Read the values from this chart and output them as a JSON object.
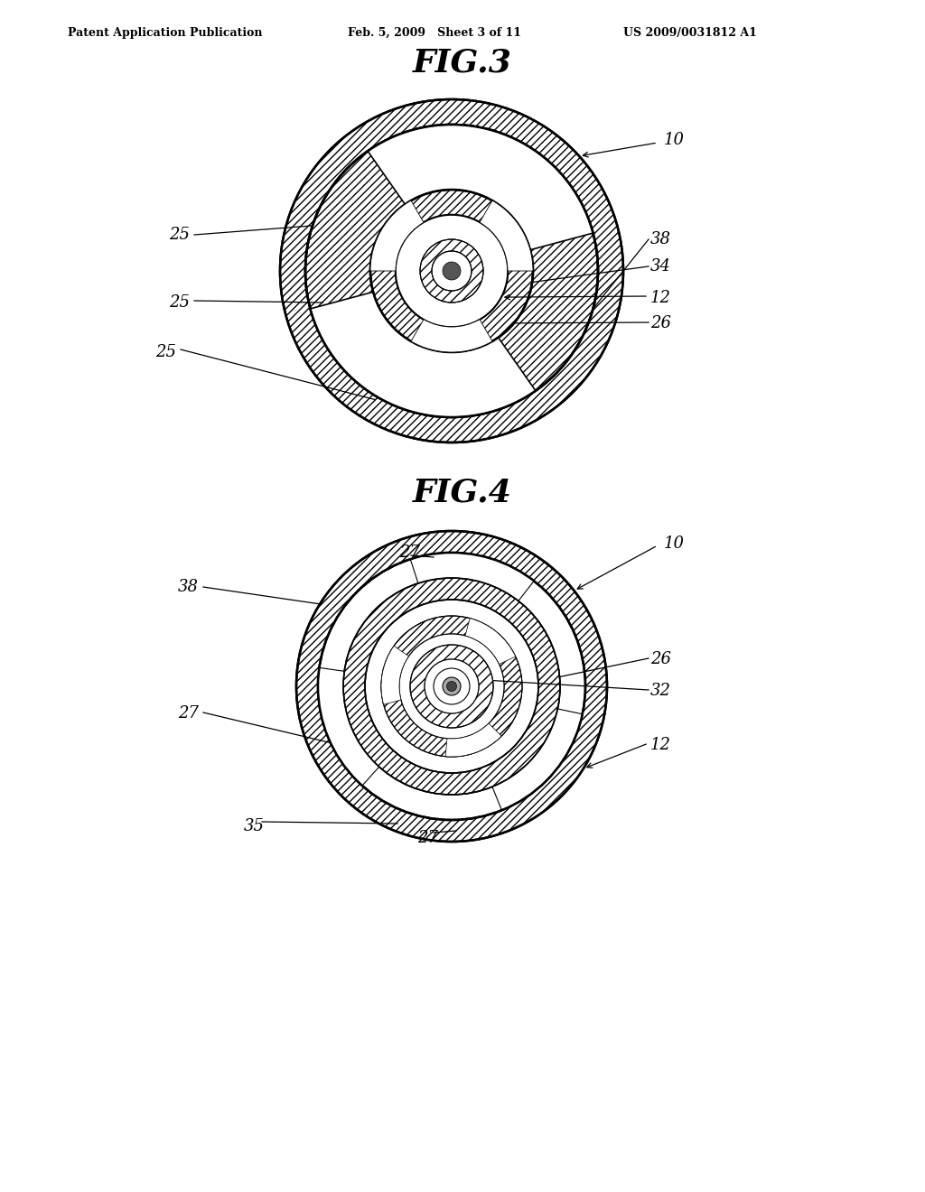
{
  "bg_color": "#ffffff",
  "header_left": "Patent Application Publication",
  "header_mid": "Feb. 5, 2009   Sheet 3 of 11",
  "header_right": "US 2009/0031812 A1",
  "fig3_title": "FIG.3",
  "fig4_title": "FIG.4",
  "line_color": "#000000"
}
